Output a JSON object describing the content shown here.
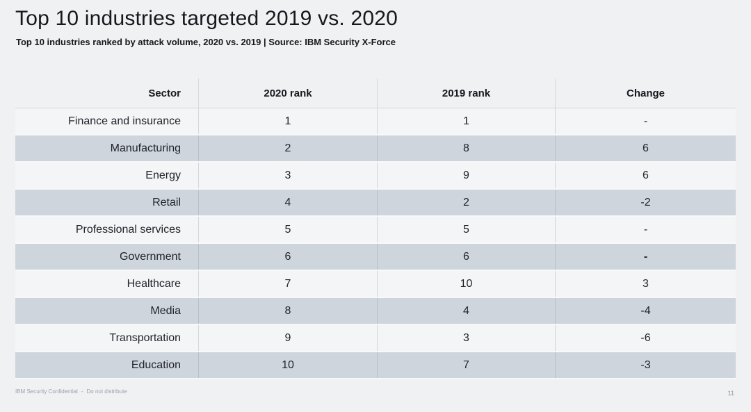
{
  "slide": {
    "title": "Top 10 industries targeted 2019 vs. 2020",
    "subtitle": "Top 10 industries ranked by attack volume, 2020 vs. 2019 | Source: IBM Security X-Force",
    "page_number": "11",
    "footer": {
      "classification": "IBM Security Confidential",
      "separator": "-",
      "note": "Do not distribute"
    }
  },
  "table": {
    "headers": [
      "Sector",
      "2020 rank",
      "2019 rank",
      "Change"
    ],
    "rows": [
      {
        "sector": "Finance and insurance",
        "rank_2020": "1",
        "rank_2019": "1",
        "change": "-",
        "shaded": false,
        "change_bold": false
      },
      {
        "sector": "Manufacturing",
        "rank_2020": "2",
        "rank_2019": "8",
        "change": "6",
        "shaded": true,
        "change_bold": false
      },
      {
        "sector": "Energy",
        "rank_2020": "3",
        "rank_2019": "9",
        "change": "6",
        "shaded": false,
        "change_bold": false
      },
      {
        "sector": "Retail",
        "rank_2020": "4",
        "rank_2019": "2",
        "change": "-2",
        "shaded": true,
        "change_bold": false
      },
      {
        "sector": "Professional services",
        "rank_2020": "5",
        "rank_2019": "5",
        "change": "-",
        "shaded": false,
        "change_bold": false
      },
      {
        "sector": "Government",
        "rank_2020": "6",
        "rank_2019": "6",
        "change": "-",
        "shaded": true,
        "change_bold": true
      },
      {
        "sector": "Healthcare",
        "rank_2020": "7",
        "rank_2019": "10",
        "change": "3",
        "shaded": false,
        "change_bold": false
      },
      {
        "sector": "Media",
        "rank_2020": "8",
        "rank_2019": "4",
        "change": "-4",
        "shaded": true,
        "change_bold": false
      },
      {
        "sector": "Transportation",
        "rank_2020": "9",
        "rank_2019": "3",
        "change": "-6",
        "shaded": false,
        "change_bold": false
      },
      {
        "sector": "Education",
        "rank_2020": "10",
        "rank_2019": "7",
        "change": "-3",
        "shaded": true,
        "change_bold": false
      }
    ]
  },
  "colors": {
    "page_background": "#eff1f3",
    "light_row": "#f3f5f7",
    "shaded_row": "#cfd5dc",
    "text": "#15181c"
  },
  "chart_data": {
    "type": "table",
    "title": "Top 10 industries targeted 2019 vs. 2020",
    "subtitle": "Top 10 industries ranked by attack volume, 2020 vs. 2019 | Source: IBM Security X-Force",
    "columns": [
      "Sector",
      "2020 rank",
      "2019 rank",
      "Change"
    ],
    "rows": [
      [
        "Finance and insurance",
        1,
        1,
        "-"
      ],
      [
        "Manufacturing",
        2,
        8,
        6
      ],
      [
        "Energy",
        3,
        9,
        6
      ],
      [
        "Retail",
        4,
        2,
        -2
      ],
      [
        "Professional services",
        5,
        5,
        "-"
      ],
      [
        "Government",
        6,
        6,
        "-"
      ],
      [
        "Healthcare",
        7,
        10,
        3
      ],
      [
        "Media",
        8,
        4,
        -4
      ],
      [
        "Transportation",
        9,
        3,
        -6
      ],
      [
        "Education",
        10,
        7,
        -3
      ]
    ]
  }
}
